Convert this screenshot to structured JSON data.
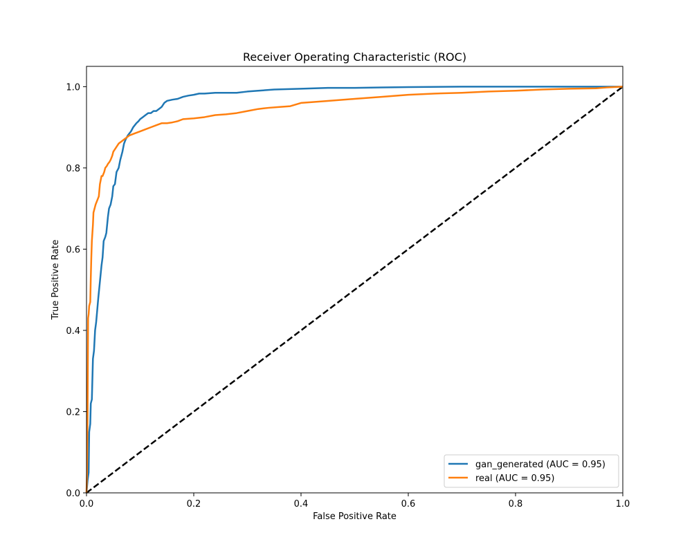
{
  "chart_data": {
    "type": "line",
    "title": "Receiver Operating Characteristic (ROC)",
    "xlabel": "False Positive Rate",
    "ylabel": "True Positive Rate",
    "xlim": [
      0.0,
      1.0
    ],
    "ylim": [
      0.0,
      1.05
    ],
    "xticks": [
      "0.0",
      "0.2",
      "0.4",
      "0.6",
      "0.8",
      "1.0"
    ],
    "yticks": [
      "0.0",
      "0.2",
      "0.4",
      "0.6",
      "0.8",
      "1.0"
    ],
    "grid": false,
    "legend_position": "lower-right",
    "series": [
      {
        "name": "gan_generated (AUC = 0.95)",
        "color": "#1f77b4",
        "x": [
          0.0,
          0.002,
          0.004,
          0.005,
          0.007,
          0.008,
          0.01,
          0.012,
          0.014,
          0.016,
          0.018,
          0.02,
          0.022,
          0.025,
          0.028,
          0.03,
          0.032,
          0.035,
          0.037,
          0.04,
          0.042,
          0.045,
          0.048,
          0.05,
          0.053,
          0.056,
          0.06,
          0.063,
          0.067,
          0.07,
          0.073,
          0.077,
          0.08,
          0.083,
          0.087,
          0.09,
          0.093,
          0.097,
          0.1,
          0.105,
          0.11,
          0.115,
          0.12,
          0.125,
          0.13,
          0.135,
          0.14,
          0.145,
          0.15,
          0.16,
          0.17,
          0.18,
          0.19,
          0.2,
          0.21,
          0.22,
          0.24,
          0.26,
          0.28,
          0.3,
          0.32,
          0.35,
          0.4,
          0.45,
          0.5,
          0.55,
          0.6,
          0.7,
          0.8,
          0.9,
          0.97,
          1.0
        ],
        "y": [
          0.0,
          0.03,
          0.05,
          0.15,
          0.17,
          0.22,
          0.23,
          0.33,
          0.35,
          0.4,
          0.42,
          0.45,
          0.48,
          0.52,
          0.56,
          0.58,
          0.62,
          0.63,
          0.64,
          0.68,
          0.7,
          0.71,
          0.73,
          0.755,
          0.76,
          0.79,
          0.8,
          0.82,
          0.84,
          0.86,
          0.87,
          0.88,
          0.885,
          0.89,
          0.9,
          0.905,
          0.91,
          0.915,
          0.92,
          0.925,
          0.93,
          0.935,
          0.935,
          0.94,
          0.94,
          0.945,
          0.95,
          0.96,
          0.965,
          0.968,
          0.97,
          0.975,
          0.978,
          0.98,
          0.983,
          0.983,
          0.985,
          0.985,
          0.985,
          0.988,
          0.99,
          0.993,
          0.995,
          0.997,
          0.997,
          0.998,
          0.999,
          1.0,
          1.0,
          1.0,
          1.0,
          1.0
        ]
      },
      {
        "name": "real (AUC = 0.95)",
        "color": "#ff7f0e",
        "x": [
          0.0,
          0.001,
          0.002,
          0.003,
          0.004,
          0.005,
          0.007,
          0.008,
          0.009,
          0.01,
          0.011,
          0.012,
          0.013,
          0.015,
          0.017,
          0.02,
          0.023,
          0.025,
          0.028,
          0.03,
          0.033,
          0.035,
          0.038,
          0.04,
          0.043,
          0.045,
          0.048,
          0.05,
          0.055,
          0.06,
          0.065,
          0.07,
          0.075,
          0.08,
          0.09,
          0.1,
          0.11,
          0.12,
          0.13,
          0.14,
          0.15,
          0.16,
          0.17,
          0.18,
          0.2,
          0.22,
          0.24,
          0.26,
          0.28,
          0.3,
          0.32,
          0.34,
          0.36,
          0.38,
          0.4,
          0.42,
          0.45,
          0.5,
          0.55,
          0.6,
          0.65,
          0.7,
          0.75,
          0.8,
          0.85,
          0.9,
          0.95,
          0.97,
          1.0
        ],
        "y": [
          0.0,
          0.05,
          0.2,
          0.43,
          0.44,
          0.46,
          0.47,
          0.53,
          0.58,
          0.62,
          0.64,
          0.66,
          0.69,
          0.7,
          0.71,
          0.72,
          0.73,
          0.76,
          0.78,
          0.78,
          0.79,
          0.8,
          0.805,
          0.81,
          0.815,
          0.82,
          0.83,
          0.84,
          0.85,
          0.86,
          0.865,
          0.87,
          0.875,
          0.88,
          0.885,
          0.89,
          0.895,
          0.9,
          0.905,
          0.91,
          0.91,
          0.912,
          0.915,
          0.92,
          0.922,
          0.925,
          0.93,
          0.932,
          0.935,
          0.94,
          0.945,
          0.948,
          0.95,
          0.952,
          0.96,
          0.962,
          0.965,
          0.97,
          0.975,
          0.98,
          0.983,
          0.985,
          0.988,
          0.99,
          0.993,
          0.995,
          0.996,
          0.998,
          1.0
        ]
      },
      {
        "name": "",
        "color": "#000000",
        "style": "dashed",
        "x": [
          0.0,
          1.0
        ],
        "y": [
          0.0,
          1.0
        ]
      }
    ]
  }
}
